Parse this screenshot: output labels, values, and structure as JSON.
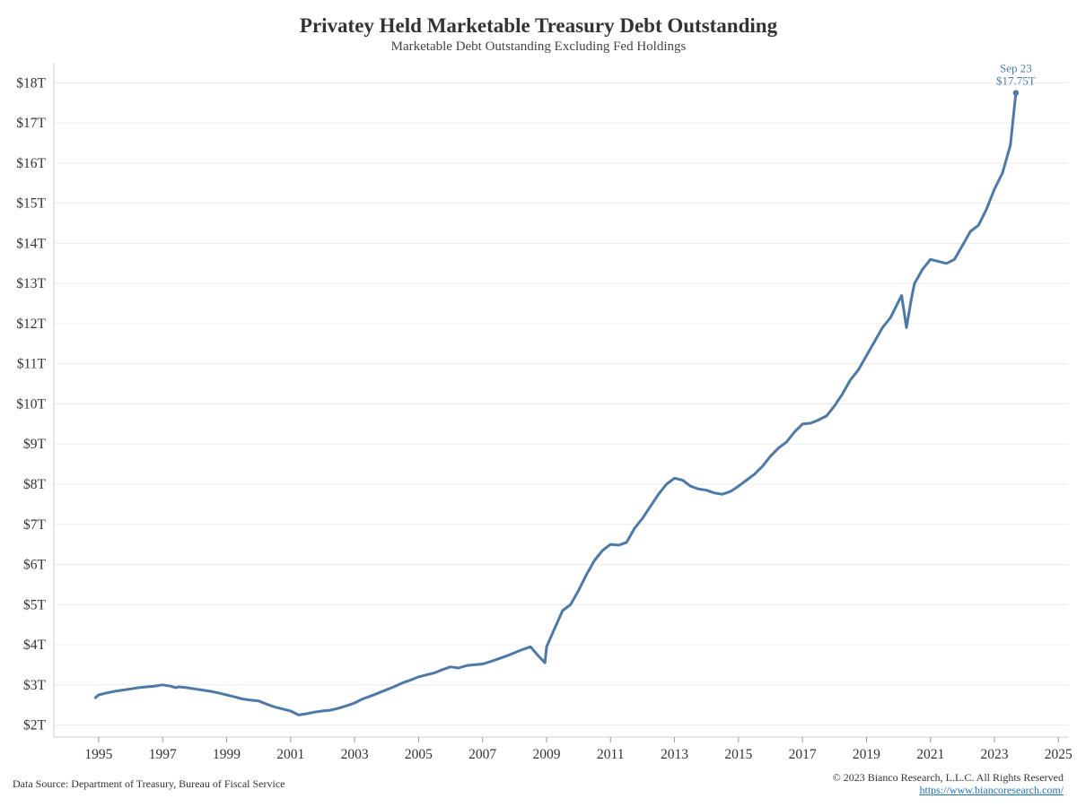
{
  "title": "Privatey Held Marketable Treasury Debt Outstanding",
  "subtitle": "Marketable Debt Outstanding Excluding Fed Holdings",
  "source": "Data Source: Department of Treasury, Bureau of Fiscal Service",
  "copyright": "© 2023 Bianco Research, L.L.C. All Rights Reserved",
  "url": "https://www.biancoresearch.com/",
  "colors": {
    "line": "#4e79a7",
    "grid": "#ececec",
    "axis": "#cfcfcf"
  },
  "chart_data": {
    "type": "line",
    "title": "Privatey Held Marketable Treasury Debt Outstanding",
    "subtitle": "Marketable Debt Outstanding Excluding Fed Holdings",
    "xlabel": "",
    "ylabel": "",
    "xlim": [
      1993.6,
      2025.3
    ],
    "ylim": [
      1.7,
      18.5
    ],
    "grid": "horizontal",
    "x_ticks": [
      1995,
      1997,
      1999,
      2001,
      2003,
      2005,
      2007,
      2009,
      2011,
      2013,
      2015,
      2017,
      2019,
      2021,
      2023,
      2025
    ],
    "x_tick_labels": [
      "1995",
      "1997",
      "1999",
      "2001",
      "2003",
      "2005",
      "2007",
      "2009",
      "2011",
      "2013",
      "2015",
      "2017",
      "2019",
      "2021",
      "2023",
      "2025"
    ],
    "y_ticks": [
      2,
      3,
      4,
      5,
      6,
      7,
      8,
      9,
      10,
      11,
      12,
      13,
      14,
      15,
      16,
      17,
      18
    ],
    "y_tick_labels": [
      "$2T",
      "$3T",
      "$4T",
      "$5T",
      "$6T",
      "$7T",
      "$8T",
      "$9T",
      "$10T",
      "$11T",
      "$12T",
      "$13T",
      "$14T",
      "$15T",
      "$16T",
      "$17T",
      "$18T"
    ],
    "annotation": {
      "x": 2023.67,
      "y": 17.75,
      "label_date": "Sep 23",
      "label_value": "$17.75T"
    },
    "series": [
      {
        "color": "#4e79a7",
        "x": [
          1994.9,
          1995.0,
          1995.25,
          1995.5,
          1995.75,
          1996.0,
          1996.25,
          1996.5,
          1996.75,
          1997.0,
          1997.25,
          1997.4,
          1997.5,
          1997.75,
          1998.0,
          1998.25,
          1998.5,
          1998.75,
          1999.0,
          1999.25,
          1999.5,
          1999.75,
          2000.0,
          2000.25,
          2000.5,
          2000.75,
          2001.0,
          2001.25,
          2001.5,
          2001.75,
          2002.0,
          2002.25,
          2002.5,
          2002.75,
          2003.0,
          2003.25,
          2003.5,
          2003.75,
          2004.0,
          2004.25,
          2004.5,
          2004.75,
          2005.0,
          2005.25,
          2005.5,
          2005.75,
          2006.0,
          2006.25,
          2006.5,
          2006.75,
          2007.0,
          2007.25,
          2007.5,
          2007.75,
          2008.0,
          2008.25,
          2008.5,
          2008.75,
          2008.95,
          2009.0,
          2009.25,
          2009.5,
          2009.75,
          2010.0,
          2010.25,
          2010.5,
          2010.75,
          2011.0,
          2011.25,
          2011.5,
          2011.75,
          2012.0,
          2012.25,
          2012.5,
          2012.75,
          2013.0,
          2013.25,
          2013.5,
          2013.75,
          2014.0,
          2014.25,
          2014.5,
          2014.75,
          2015.0,
          2015.25,
          2015.5,
          2015.75,
          2016.0,
          2016.25,
          2016.5,
          2016.75,
          2017.0,
          2017.25,
          2017.5,
          2017.75,
          2018.0,
          2018.25,
          2018.5,
          2018.75,
          2019.0,
          2019.25,
          2019.5,
          2019.75,
          2020.0,
          2020.1,
          2020.25,
          2020.4,
          2020.5,
          2020.75,
          2021.0,
          2021.25,
          2021.5,
          2021.75,
          2022.0,
          2022.25,
          2022.5,
          2022.75,
          2023.0,
          2023.25,
          2023.5,
          2023.67
        ],
        "y": [
          2.68,
          2.75,
          2.8,
          2.84,
          2.87,
          2.9,
          2.93,
          2.95,
          2.97,
          3.0,
          2.97,
          2.93,
          2.95,
          2.93,
          2.9,
          2.87,
          2.84,
          2.8,
          2.75,
          2.7,
          2.65,
          2.62,
          2.6,
          2.52,
          2.45,
          2.4,
          2.35,
          2.25,
          2.28,
          2.32,
          2.35,
          2.37,
          2.42,
          2.48,
          2.55,
          2.65,
          2.72,
          2.8,
          2.88,
          2.96,
          3.05,
          3.12,
          3.2,
          3.25,
          3.3,
          3.38,
          3.45,
          3.42,
          3.48,
          3.5,
          3.52,
          3.58,
          3.65,
          3.72,
          3.8,
          3.88,
          3.95,
          3.72,
          3.55,
          3.95,
          4.4,
          4.85,
          5.0,
          5.35,
          5.75,
          6.1,
          6.35,
          6.5,
          6.48,
          6.55,
          6.9,
          7.15,
          7.45,
          7.75,
          8.0,
          8.15,
          8.1,
          7.95,
          7.88,
          7.85,
          7.78,
          7.75,
          7.82,
          7.95,
          8.1,
          8.25,
          8.45,
          8.7,
          8.9,
          9.05,
          9.3,
          9.5,
          9.52,
          9.6,
          9.7,
          9.95,
          10.25,
          10.6,
          10.85,
          11.2,
          11.55,
          11.9,
          12.15,
          12.55,
          12.7,
          11.9,
          12.6,
          13.0,
          13.35,
          13.6,
          13.55,
          13.5,
          13.6,
          13.95,
          14.3,
          14.45,
          14.85,
          15.35,
          15.75,
          16.45,
          17.75
        ]
      }
    ]
  }
}
